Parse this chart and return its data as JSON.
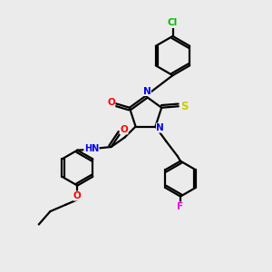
{
  "bg_color": "#ebebeb",
  "atom_colors": {
    "N": "#0000ee",
    "O": "#ff0000",
    "S": "#cccc00",
    "Cl": "#00bb00",
    "F": "#ee00ee",
    "H": "#8888cc",
    "C": "#000000"
  },
  "bond_color": "#000000",
  "bond_width": 1.6,
  "figsize": [
    3.0,
    3.0
  ],
  "dpi": 100
}
